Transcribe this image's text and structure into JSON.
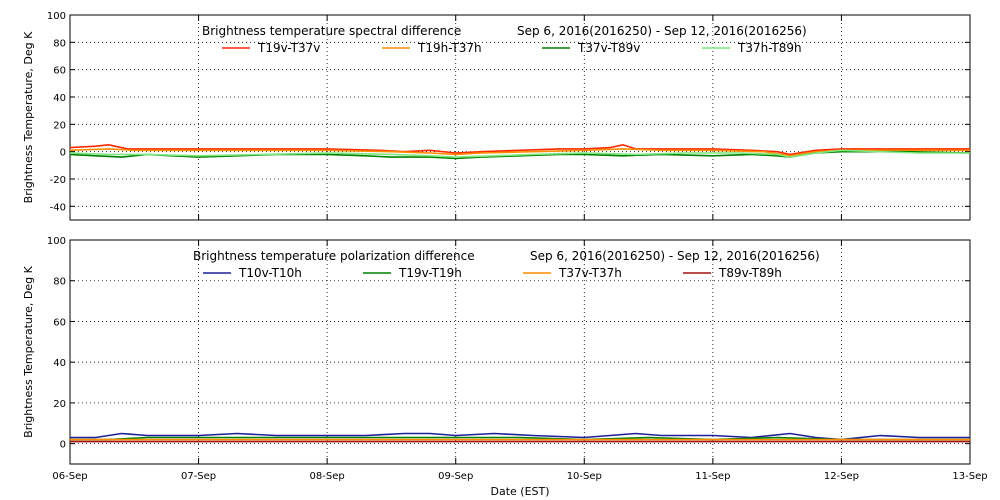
{
  "chart_data": [
    {
      "type": "line",
      "title": "Brightness temperature spectral difference",
      "date_range": "Sep  6, 2016(2016250) - Sep 12, 2016(2016256)",
      "ylabel": "Brightness Temperature, Deg K",
      "xlabel": "",
      "ylim": [
        -50,
        100
      ],
      "yticks": [
        -40,
        -20,
        0,
        20,
        40,
        60,
        80,
        100
      ],
      "xlim": [
        0,
        7
      ],
      "xticks": [
        0,
        1,
        2,
        3,
        4,
        5,
        6,
        7
      ],
      "xtick_labels": [
        "",
        "",
        "",
        "",
        "",
        "",
        "",
        ""
      ],
      "grid": true,
      "legend": "top",
      "series": [
        {
          "name": "T19v-T37v",
          "color": "#ff2a00",
          "x": [
            0,
            0.2,
            0.3,
            0.45,
            0.6,
            1.0,
            1.5,
            2.0,
            2.4,
            2.6,
            2.8,
            3.0,
            3.2,
            3.5,
            3.8,
            4.0,
            4.2,
            4.3,
            4.4,
            4.6,
            5.0,
            5.3,
            5.5,
            5.6,
            5.8,
            6.0,
            6.3,
            6.6,
            7.0
          ],
          "y": [
            3,
            4,
            5,
            2,
            2,
            2,
            2,
            2,
            1,
            0,
            1,
            -1,
            0,
            1,
            2,
            2,
            3,
            5,
            2,
            2,
            2,
            1,
            0,
            -2,
            1,
            2,
            2,
            2,
            2
          ]
        },
        {
          "name": "T19h-T37h",
          "color": "#ff8c00",
          "x": [
            0,
            0.3,
            0.5,
            1.0,
            1.5,
            2.0,
            2.5,
            2.8,
            3.0,
            3.2,
            3.6,
            4.0,
            4.3,
            4.6,
            5.0,
            5.4,
            5.6,
            5.8,
            6.0,
            6.5,
            7.0
          ],
          "y": [
            1,
            2,
            1,
            1,
            1,
            1,
            0,
            -1,
            -2,
            -1,
            0,
            1,
            2,
            1,
            1,
            0,
            -3,
            0,
            1,
            1,
            1
          ]
        },
        {
          "name": "T37v-T89v",
          "color": "#008000",
          "x": [
            0,
            0.2,
            0.4,
            0.6,
            0.8,
            1.0,
            1.3,
            1.6,
            2.0,
            2.3,
            2.5,
            2.8,
            3.0,
            3.2,
            3.5,
            3.8,
            4.0,
            4.3,
            4.6,
            5.0,
            5.3,
            5.5,
            5.6,
            5.8,
            6.0,
            6.5,
            7.0
          ],
          "y": [
            -2,
            -3,
            -4,
            -2,
            -3,
            -4,
            -3,
            -2,
            -2,
            -3,
            -4,
            -4,
            -5,
            -4,
            -3,
            -2,
            -2,
            -3,
            -2,
            -3,
            -2,
            -3,
            -4,
            -1,
            0,
            0,
            -1
          ]
        },
        {
          "name": "T37h-T89h",
          "color": "#7fe87f",
          "x": [
            0,
            0.3,
            0.6,
            1.0,
            1.5,
            2.0,
            2.5,
            2.8,
            3.0,
            3.3,
            3.6,
            4.0,
            4.4,
            4.8,
            5.2,
            5.5,
            5.6,
            5.8,
            6.0,
            6.3,
            6.6,
            7.0
          ],
          "y": [
            -1,
            -2,
            -2,
            -3,
            -2,
            -1,
            -2,
            -3,
            -4,
            -3,
            -2,
            -1,
            -2,
            -1,
            -1,
            -2,
            -4,
            -1,
            1,
            0,
            -1,
            -1
          ]
        }
      ]
    },
    {
      "type": "line",
      "title": "Brightness temperature polarization difference",
      "date_range": "Sep  6, 2016(2016250) - Sep 12, 2016(2016256)",
      "ylabel": "Brightness Temperature, Deg K",
      "xlabel": "Date (EST)",
      "ylim": [
        -10,
        100
      ],
      "yticks": [
        0,
        20,
        40,
        60,
        80,
        100
      ],
      "xlim": [
        0,
        7
      ],
      "xticks": [
        0,
        1,
        2,
        3,
        4,
        5,
        6,
        7
      ],
      "xtick_labels": [
        "06-Sep",
        "07-Sep",
        "08-Sep",
        "09-Sep",
        "10-Sep",
        "11-Sep",
        "12-Sep",
        "13-Sep"
      ],
      "grid": true,
      "legend": "top",
      "series": [
        {
          "name": "T10v-T10h",
          "color": "#1f1f9a",
          "x": [
            0,
            0.2,
            0.4,
            0.6,
            0.8,
            1.0,
            1.3,
            1.6,
            2.0,
            2.3,
            2.6,
            2.8,
            3.0,
            3.3,
            3.6,
            4.0,
            4.2,
            4.4,
            4.6,
            5.0,
            5.3,
            5.6,
            5.8,
            6.0,
            6.3,
            6.6,
            7.0
          ],
          "y": [
            3,
            3,
            5,
            4,
            4,
            4,
            5,
            4,
            4,
            4,
            5,
            5,
            4,
            5,
            4,
            3,
            4,
            5,
            4,
            4,
            3,
            5,
            3,
            2,
            4,
            3,
            3
          ]
        },
        {
          "name": "T19v-T19h",
          "color": "#008000",
          "x": [
            0,
            0.3,
            0.6,
            1.0,
            1.5,
            2.0,
            2.5,
            3.0,
            3.5,
            4.0,
            4.5,
            5.0,
            5.5,
            6.0,
            6.5,
            7.0
          ],
          "y": [
            2,
            2,
            3,
            3,
            3,
            3,
            3,
            3,
            3,
            2,
            3,
            2,
            3,
            2,
            2,
            2
          ]
        },
        {
          "name": "T37v-T37h",
          "color": "#ff8c00",
          "x": [
            0,
            0.3,
            0.6,
            1.0,
            1.5,
            2.0,
            2.5,
            3.0,
            3.5,
            4.0,
            4.5,
            5.0,
            5.5,
            6.0,
            6.5,
            7.0
          ],
          "y": [
            2,
            2,
            2,
            2,
            2,
            2,
            2,
            2,
            2,
            2,
            2,
            2,
            2,
            2,
            2,
            2
          ]
        },
        {
          "name": "T89v-T89h",
          "color": "#a01010",
          "x": [
            0,
            0.3,
            0.6,
            1.0,
            1.5,
            2.0,
            2.5,
            3.0,
            3.5,
            4.0,
            4.5,
            5.0,
            5.5,
            6.0,
            6.5,
            7.0
          ],
          "y": [
            1,
            1,
            1,
            1,
            1,
            1,
            1,
            1,
            1,
            1,
            1,
            1,
            1,
            1,
            1,
            1
          ]
        }
      ]
    }
  ]
}
